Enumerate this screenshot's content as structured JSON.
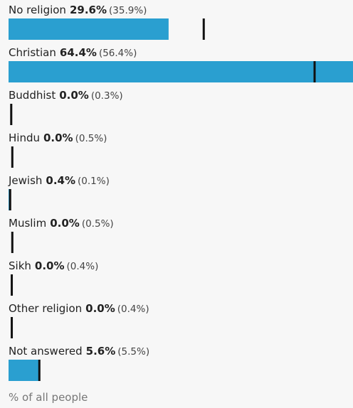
{
  "chart_data": {
    "type": "comparison-bar",
    "categories": [
      "No religion",
      "Christian",
      "Buddhist",
      "Hindu",
      "Jewish",
      "Muslim",
      "Sikh",
      "Other religion",
      "Not answered"
    ],
    "values": [
      29.6,
      64.4,
      0.0,
      0.0,
      0.4,
      0.0,
      0.0,
      0.0,
      5.6
    ],
    "value_labels": [
      "29.6%",
      "64.4%",
      "0.0%",
      "0.0%",
      "0.4%",
      "0.0%",
      "0.0%",
      "0.0%",
      "5.6%"
    ],
    "comparison": [
      35.9,
      56.4,
      0.3,
      0.5,
      0.1,
      0.5,
      0.4,
      0.4,
      5.5
    ],
    "comparison_labels": [
      "(35.9%)",
      "(56.4%)",
      "(0.3%)",
      "(0.5%)",
      "(0.1%)",
      "(0.5%)",
      "(0.4%)",
      "(0.4%)",
      "(5.5%)"
    ],
    "color": "#2a9fd0",
    "marker_color": "#111",
    "xlim": [
      0,
      63.7
    ],
    "note": "% of all people"
  }
}
